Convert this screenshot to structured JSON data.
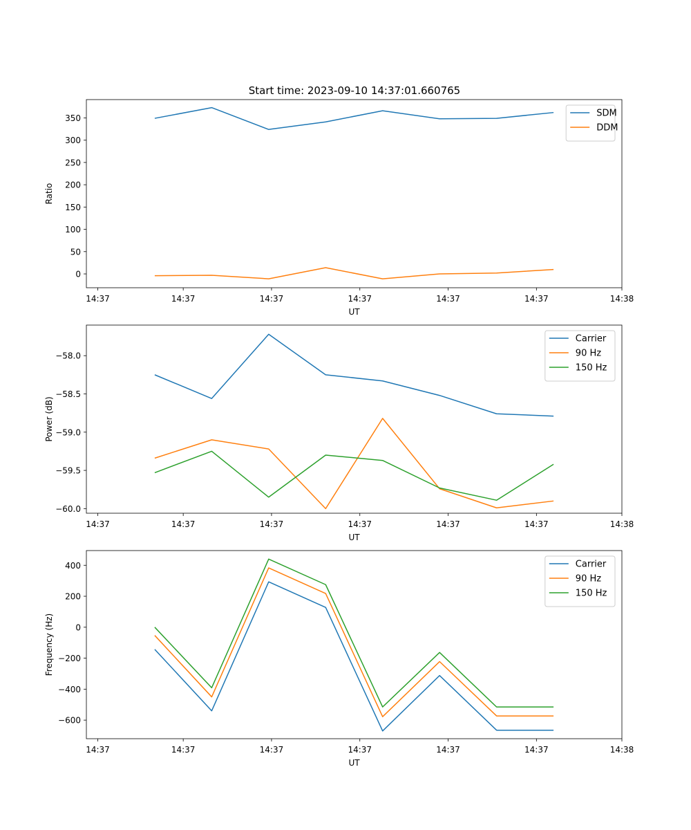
{
  "figure_title": "Start time: 2023-09-10 14:37:01.660765",
  "colors": {
    "blue": "#1f77b4",
    "orange": "#ff7f0e",
    "green": "#2ca02c"
  },
  "chart_data": [
    {
      "type": "line",
      "title": "Start time: 2023-09-10 14:37:01.660765",
      "xlabel": "UT",
      "ylabel": "Ratio",
      "x": [
        1,
        2,
        3,
        4,
        5,
        6,
        7,
        8
      ],
      "xlim": [
        -0.2,
        9.2
      ],
      "xticks": [
        0,
        1.5,
        3.05,
        4.6,
        6.15,
        7.7,
        9.2
      ],
      "xticklabels": [
        "14:37",
        "14:37",
        "14:37",
        "14:37",
        "14:37",
        "14:37",
        "14:38"
      ],
      "ylim": [
        -31,
        391
      ],
      "yticks": [
        0,
        50,
        100,
        150,
        200,
        250,
        300,
        350
      ],
      "yticklabels": [
        "0",
        "50",
        "100",
        "150",
        "200",
        "250",
        "300",
        "350"
      ],
      "legend_position": "top-right",
      "series": [
        {
          "name": "SDM",
          "color": "#1f77b4",
          "values": [
            349,
            373,
            324,
            341,
            366,
            348,
            349,
            362
          ]
        },
        {
          "name": "DDM",
          "color": "#ff7f0e",
          "values": [
            -4,
            -3,
            -11,
            14,
            -11,
            0,
            2,
            10
          ]
        }
      ]
    },
    {
      "type": "line",
      "title": "",
      "xlabel": "UT",
      "ylabel": "Power (dB)",
      "x": [
        1,
        2,
        3,
        4,
        5,
        6,
        7,
        8
      ],
      "xlim": [
        -0.2,
        9.2
      ],
      "xticks": [
        0,
        1.5,
        3.05,
        4.6,
        6.15,
        7.7,
        9.2
      ],
      "xticklabels": [
        "14:37",
        "14:37",
        "14:37",
        "14:37",
        "14:37",
        "14:37",
        "14:38"
      ],
      "ylim": [
        -60.06,
        -57.6
      ],
      "yticks": [
        -58.0,
        -58.5,
        -59.0,
        -59.5,
        -60.0
      ],
      "yticklabels": [
        "−58.0",
        "−58.5",
        "−59.0",
        "−59.5",
        "−60.0"
      ],
      "legend_position": "top-right",
      "series": [
        {
          "name": "Carrier",
          "color": "#1f77b4",
          "values": [
            -58.25,
            -58.56,
            -57.72,
            -58.25,
            -58.33,
            -58.52,
            -58.76,
            -58.79
          ]
        },
        {
          "name": "90 Hz",
          "color": "#ff7f0e",
          "values": [
            -59.34,
            -59.1,
            -59.22,
            -60.0,
            -58.82,
            -59.74,
            -59.99,
            -59.9
          ]
        },
        {
          "name": "150 Hz",
          "color": "#2ca02c",
          "values": [
            -59.53,
            -59.25,
            -59.85,
            -59.3,
            -59.37,
            -59.73,
            -59.89,
            -59.42
          ]
        }
      ]
    },
    {
      "type": "line",
      "title": "",
      "xlabel": "UT",
      "ylabel": "Frequency (Hz)",
      "x": [
        1,
        2,
        3,
        4,
        5,
        6,
        7,
        8
      ],
      "xlim": [
        -0.2,
        9.2
      ],
      "xticks": [
        0,
        1.5,
        3.05,
        4.6,
        6.15,
        7.7,
        9.2
      ],
      "xticklabels": [
        "14:37",
        "14:37",
        "14:37",
        "14:37",
        "14:37",
        "14:37",
        "14:38"
      ],
      "ylim": [
        -720,
        495
      ],
      "yticks": [
        400,
        200,
        0,
        -200,
        -400,
        -600
      ],
      "yticklabels": [
        "400",
        "200",
        "0",
        "−200",
        "−400",
        "−600"
      ],
      "legend_position": "top-right",
      "series": [
        {
          "name": "Carrier",
          "color": "#1f77b4",
          "values": [
            -143,
            -540,
            293,
            128,
            -670,
            -312,
            -665,
            -665
          ]
        },
        {
          "name": "90 Hz",
          "color": "#ff7f0e",
          "values": [
            -53,
            -450,
            383,
            218,
            -578,
            -222,
            -573,
            -573
          ]
        },
        {
          "name": "150 Hz",
          "color": "#2ca02c",
          "values": [
            0,
            -391,
            440,
            275,
            -515,
            -163,
            -515,
            -515
          ]
        }
      ]
    }
  ]
}
